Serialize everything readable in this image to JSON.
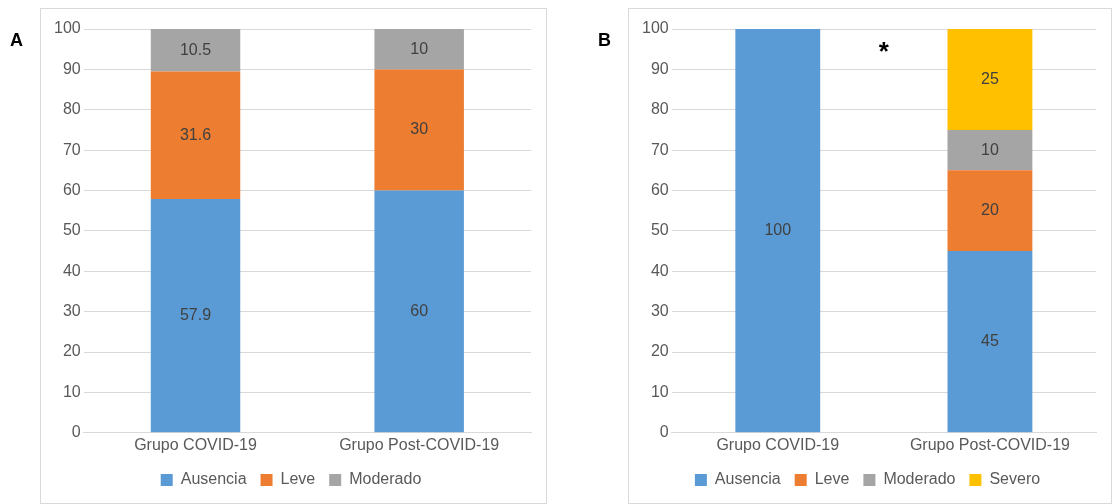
{
  "chart_data": [
    {
      "type": "bar",
      "stacked": true,
      "categories": [
        "Grupo COVID-19",
        "Grupo Post-COVID-19"
      ],
      "series": [
        {
          "name": "Ausencia",
          "color": "#5b9bd5",
          "values": [
            57.9,
            60
          ]
        },
        {
          "name": "Leve",
          "color": "#ed7d31",
          "values": [
            31.6,
            30
          ]
        },
        {
          "name": "Moderado",
          "color": "#a5a5a5",
          "values": [
            10.5,
            10
          ]
        }
      ],
      "ylim": [
        0,
        100
      ],
      "yticks": [
        0,
        10,
        20,
        30,
        40,
        50,
        60,
        70,
        80,
        90,
        100
      ],
      "grid": "y",
      "legend": "bottom",
      "data_labels": true,
      "annotations": [
        "A"
      ]
    },
    {
      "type": "bar",
      "stacked": true,
      "categories": [
        "Grupo COVID-19",
        "Grupo Post-COVID-19"
      ],
      "series": [
        {
          "name": "Ausencia",
          "color": "#5b9bd5",
          "values": [
            100,
            45
          ]
        },
        {
          "name": "Leve",
          "color": "#ed7d31",
          "values": [
            null,
            20
          ]
        },
        {
          "name": "Moderado",
          "color": "#a5a5a5",
          "values": [
            null,
            10
          ]
        },
        {
          "name": "Severo",
          "color": "#ffc000",
          "values": [
            null,
            25
          ]
        }
      ],
      "ylim": [
        0,
        100
      ],
      "yticks": [
        0,
        10,
        20,
        30,
        40,
        50,
        60,
        70,
        80,
        90,
        100
      ],
      "grid": "y",
      "legend": "bottom",
      "data_labels": true,
      "annotations": [
        "B",
        "*"
      ]
    }
  ]
}
